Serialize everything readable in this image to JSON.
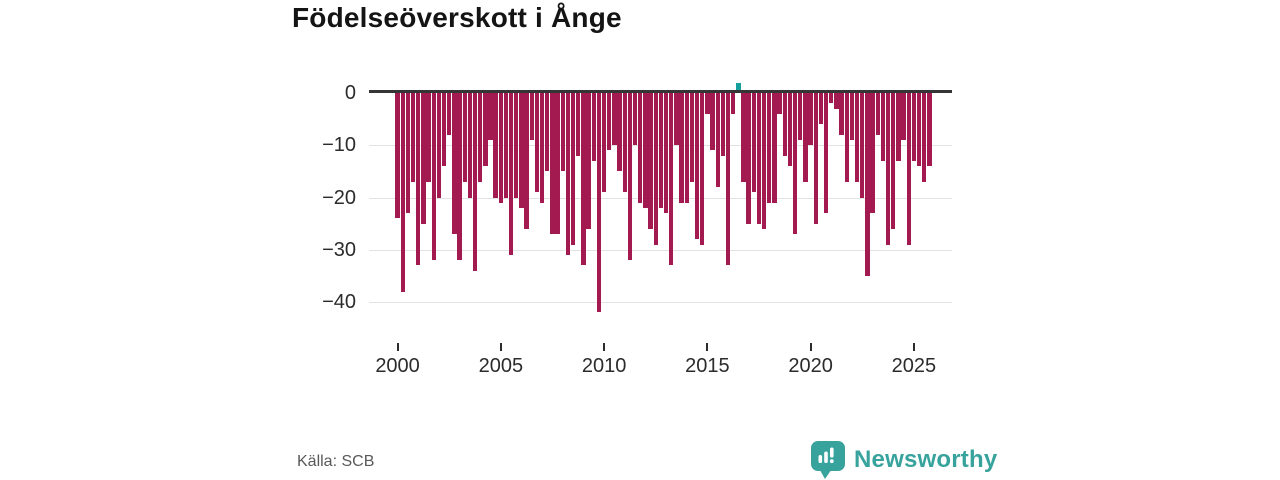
{
  "title": "Födelseöverskott i Ånge",
  "source": "Källa: SCB",
  "brand": {
    "name": "Newsworthy",
    "color": "#38a39d",
    "icon": "speech-bubble-bar-chart"
  },
  "colors": {
    "negative_bar": "#a21a50",
    "positive_bar": "#16a09d",
    "axis_line": "#353535",
    "gridline": "#e2e2e2",
    "tick_text": "#2b2b2b",
    "source_text": "#595959"
  },
  "chart_data": {
    "type": "bar",
    "title": "Födelseöverskott i Ånge",
    "frequency": "quarterly",
    "start": "2000 Q1",
    "end": "2025 Q4",
    "xlabel": "",
    "ylabel": "",
    "grid": "horizontal",
    "legend": "none",
    "ylim": [
      -44,
      4
    ],
    "x_tick_years": [
      2000,
      2005,
      2010,
      2015,
      2020,
      2025
    ],
    "x_ticks": [
      "2000",
      "2005",
      "2010",
      "2015",
      "2020",
      "2025"
    ],
    "y_tick_values": [
      0,
      -10,
      -20,
      -30,
      -40
    ],
    "y_ticks": [
      "0",
      "−10",
      "−20",
      "−30",
      "−40"
    ],
    "highlight": {
      "index": 66,
      "period": "2016 Q3",
      "value": 2,
      "color": "#16a09d"
    },
    "values": [
      -24,
      -38,
      -23,
      -17,
      -33,
      -25,
      -17,
      -32,
      -20,
      -14,
      -8,
      -27,
      -32,
      -17,
      -20,
      -34,
      -17,
      -14,
      -9,
      -20,
      -21,
      -20,
      -31,
      -20,
      -22,
      -26,
      -9,
      -19,
      -21,
      -15,
      -27,
      -27,
      -15,
      -31,
      -29,
      -12,
      -33,
      -26,
      -13,
      -42,
      -19,
      -11,
      -10,
      -15,
      -19,
      -32,
      -10,
      -21,
      -22,
      -26,
      -29,
      -22,
      -23,
      -33,
      -10,
      -21,
      -21,
      -17,
      -28,
      -29,
      -4,
      -11,
      -18,
      -12,
      -33,
      -4,
      2,
      -17,
      -25,
      -19,
      -25,
      -26,
      -21,
      -21,
      -4,
      -12,
      -14,
      -27,
      -9,
      -17,
      -10,
      -25,
      -6,
      -23,
      -2,
      -3,
      -8,
      -17,
      -9,
      -17,
      -20,
      -35,
      -23,
      -8,
      -13,
      -29,
      -26,
      -13,
      -9,
      -29,
      -13,
      -14,
      -17,
      -14
    ]
  }
}
